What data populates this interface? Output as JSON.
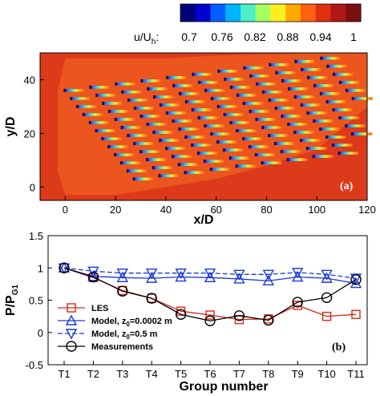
{
  "chart_data": [
    {
      "type": "heatmap",
      "panel_label": "(a)",
      "xlabel": "x/D",
      "ylabel": "y/D",
      "xlim": [
        -10,
        120
      ],
      "ylim": [
        -5,
        50
      ],
      "xticks": [
        "0",
        "20",
        "40",
        "60",
        "80",
        "100",
        "120"
      ],
      "yticks": [
        "0",
        "20",
        "40"
      ],
      "colorbar": {
        "label": "u/U",
        "label_sub": "h",
        "label_suffix": ":",
        "ticks": [
          "0.7",
          "0.76",
          "0.82",
          "0.88",
          "0.94",
          "1"
        ],
        "colors": [
          "#00007a",
          "#0000d0",
          "#0060ff",
          "#00b4ff",
          "#4cf0c8",
          "#a8ff60",
          "#ffef20",
          "#ffa800",
          "#ff6010",
          "#e03010",
          "#b01818",
          "#7a1010"
        ]
      },
      "background_color": "#dc3a1a",
      "wake_color": "#ef5a1e"
    },
    {
      "type": "line",
      "panel_label": "(b)",
      "xlabel": "Group number",
      "ylabel": "P/P",
      "ylabel_sub": "G1",
      "categories": [
        "T1",
        "T2",
        "T3",
        "T4",
        "T5",
        "T6",
        "T7",
        "T8",
        "T9",
        "T10",
        "T11"
      ],
      "yticks": [
        "-0.5",
        "0",
        "0.5",
        "1",
        "1.5"
      ],
      "ylim": [
        -0.5,
        1.5
      ],
      "series": [
        {
          "name": "LES",
          "color": "#d42a1a",
          "marker": "square",
          "dash": "solid",
          "values": [
            1.0,
            0.85,
            0.65,
            0.53,
            0.33,
            0.27,
            0.2,
            0.21,
            0.42,
            0.25,
            0.28
          ]
        },
        {
          "name": "Model, z",
          "name_sub": "0",
          "name_suffix": "=0.0002 m",
          "color": "#1a3ad8",
          "marker": "triangle-up",
          "dash": "solid",
          "values": [
            1.0,
            0.87,
            0.85,
            0.84,
            0.86,
            0.85,
            0.83,
            0.8,
            0.86,
            0.84,
            0.76
          ]
        },
        {
          "name": "Model, z",
          "name_sub": "0",
          "name_suffix": "=0.5 m",
          "color": "#1a3ad8",
          "marker": "triangle-down",
          "dash": "dashed",
          "values": [
            1.0,
            0.95,
            0.92,
            0.92,
            0.92,
            0.92,
            0.9,
            0.9,
            0.93,
            0.9,
            0.84
          ]
        },
        {
          "name": "Measurements",
          "color": "#000000",
          "marker": "circle",
          "dash": "solid",
          "values": [
            1.0,
            0.86,
            0.64,
            0.53,
            0.28,
            0.18,
            0.26,
            0.19,
            0.47,
            0.54,
            0.82
          ]
        }
      ]
    }
  ]
}
